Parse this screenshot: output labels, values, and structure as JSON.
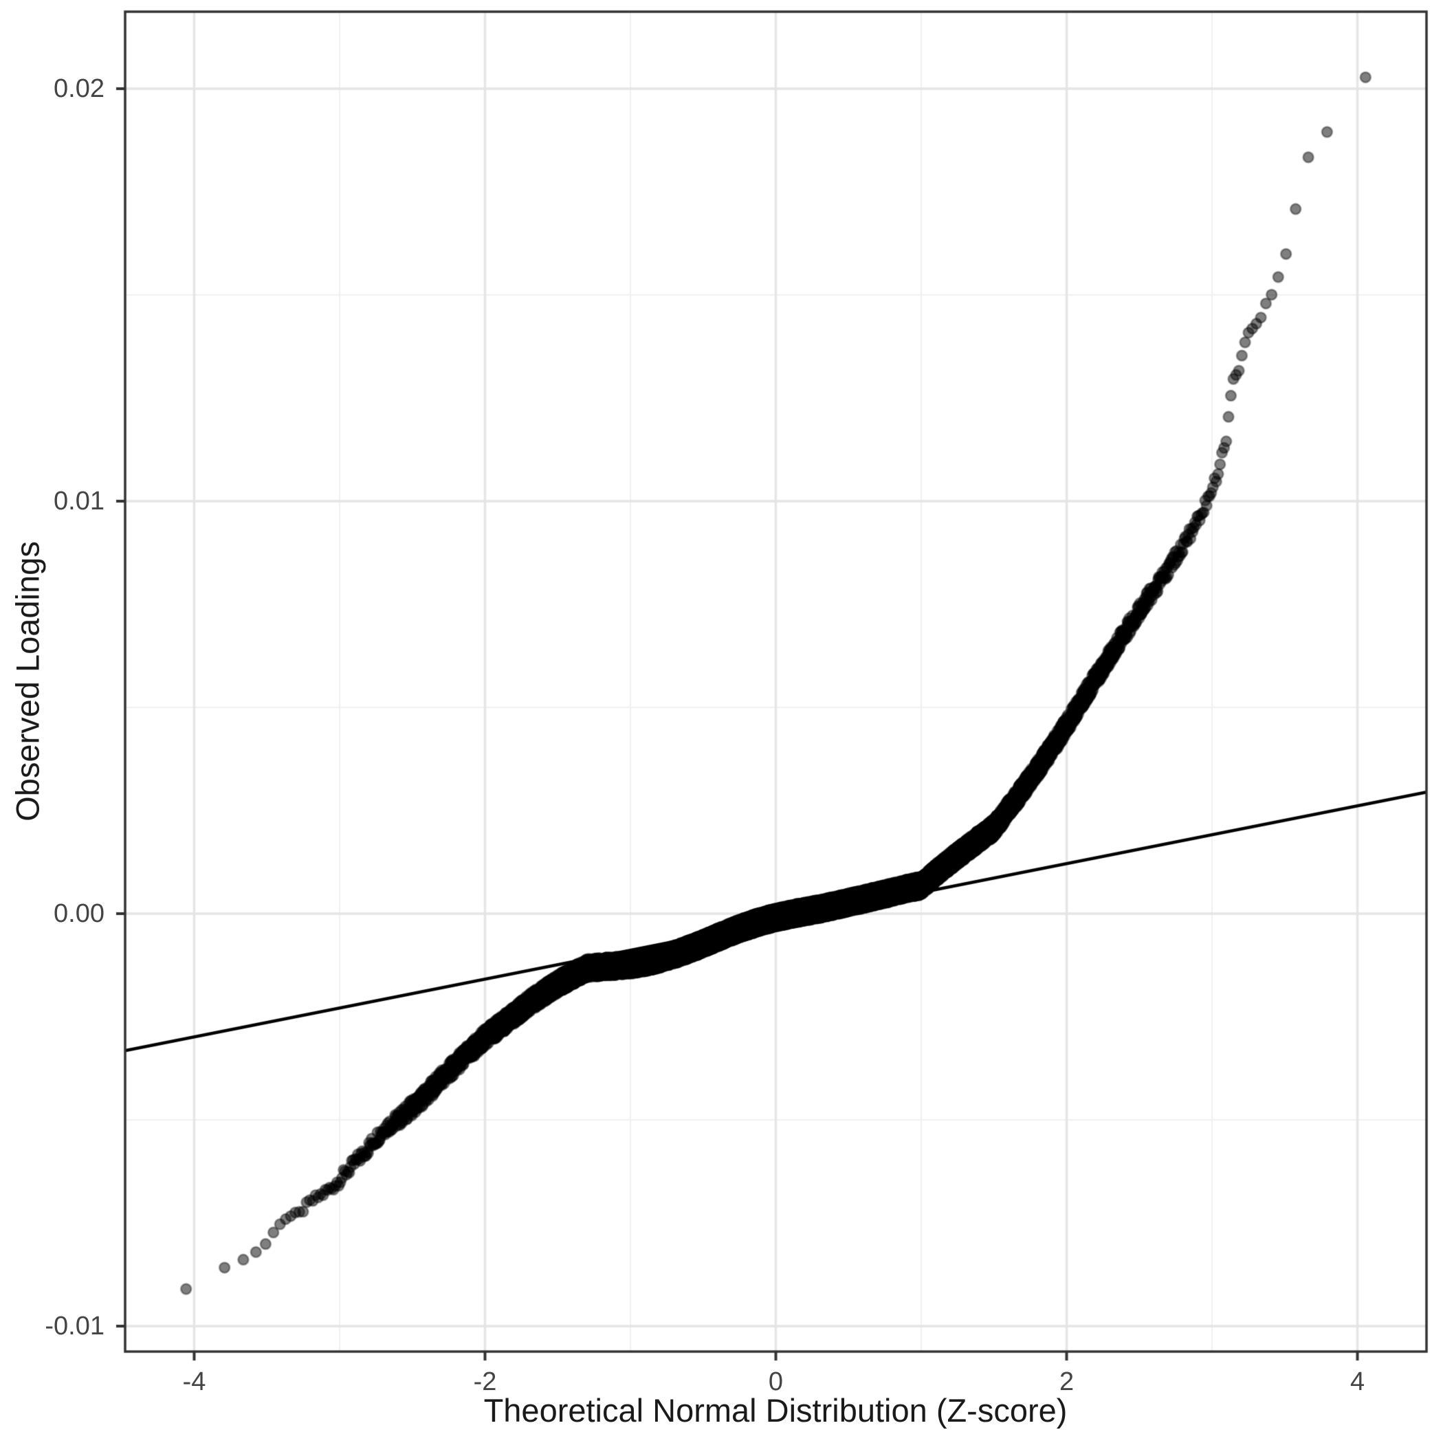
{
  "style": {
    "background": "#ffffff",
    "panel_border": "#333333",
    "grid_major": "#e5e5e5",
    "grid_minor": "#f0f0f0",
    "tick_mark": "#333333",
    "tick_label_color": "#444444",
    "axis_title_color": "#1a1a1a",
    "point_fill": "rgba(0,0,0,0.5)",
    "point_stroke": "rgba(0,0,0,0.35)",
    "reference_line_color": "#000000"
  },
  "chart_data": {
    "type": "scatter",
    "subtype": "normal-qq-plot",
    "title": "",
    "xlabel": "Theoretical Normal Distribution (Z-score)",
    "ylabel": "Observed Loadings",
    "xlim": [
      -4.475,
      4.475
    ],
    "ylim": [
      -0.010617,
      0.021867
    ],
    "grid": "on",
    "legend": "none",
    "x_major_ticks": [
      {
        "value": -4,
        "label": "-4"
      },
      {
        "value": -2,
        "label": "-2"
      },
      {
        "value": 0,
        "label": "0"
      },
      {
        "value": 2,
        "label": "2"
      },
      {
        "value": 4,
        "label": "4"
      }
    ],
    "x_minor_ticks": [
      -3,
      -1,
      1,
      3
    ],
    "y_major_ticks": [
      {
        "value": 0.02,
        "label": "0.02"
      },
      {
        "value": 0.01,
        "label": "0.01"
      },
      {
        "value": 0.0,
        "label": "0.00"
      },
      {
        "value": -0.01,
        "label": "-0.01"
      }
    ],
    "y_minor_ticks": [
      -0.005,
      0.005,
      0.015
    ],
    "n_points": 20000,
    "point_radius_px": 7.5,
    "point_stroke_px": 2.5,
    "reference_line": {
      "intercept": -0.000188,
      "slope": 0.0007
    },
    "qq_curve_anchors": [
      [
        -4.47,
        -0.0098
      ],
      [
        -4.08,
        -0.00915
      ],
      [
        -3.81,
        -0.0086
      ],
      [
        -3.68,
        -0.00843
      ],
      [
        -3.59,
        -0.00823
      ],
      [
        -3.53,
        -0.0081
      ],
      [
        -3.47,
        -0.00783
      ],
      [
        -3.42,
        -0.00752
      ],
      [
        -3.36,
        -0.00735
      ],
      [
        -3.28,
        -0.00728
      ],
      [
        -3.21,
        -0.007
      ],
      [
        -3.05,
        -0.00663
      ],
      [
        -2.83,
        -0.00585
      ],
      [
        -2.69,
        -0.0053
      ],
      [
        -2.59,
        -0.0051
      ],
      [
        -2.44,
        -0.00463
      ],
      [
        -2.2,
        -0.0037
      ],
      [
        -2.0,
        -0.00297
      ],
      [
        -1.7,
        -0.00215
      ],
      [
        -1.5,
        -0.0017
      ],
      [
        -1.3,
        -0.0013
      ],
      [
        -1.0,
        -0.00112
      ],
      [
        -0.5,
        -0.00068
      ],
      [
        0.0,
        -0.00022
      ],
      [
        0.5,
        0.00025
      ],
      [
        1.0,
        0.0006
      ],
      [
        1.5,
        0.0022
      ],
      [
        2.0,
        0.00465
      ],
      [
        2.5,
        0.0073
      ],
      [
        2.8,
        0.0089
      ],
      [
        3.0,
        0.0102
      ],
      [
        3.1,
        0.0115
      ],
      [
        3.14,
        0.01287
      ],
      [
        3.16,
        0.01307
      ],
      [
        3.19,
        0.01327
      ],
      [
        3.22,
        0.01387
      ],
      [
        3.28,
        0.01418
      ],
      [
        3.33,
        0.0144
      ],
      [
        3.38,
        0.01487
      ],
      [
        3.42,
        0.01502
      ],
      [
        3.47,
        0.0156
      ],
      [
        3.52,
        0.0161
      ],
      [
        3.59,
        0.01732
      ],
      [
        3.68,
        0.01857
      ],
      [
        3.8,
        0.01898
      ],
      [
        4.07,
        0.02035
      ],
      [
        4.47,
        0.0205
      ]
    ],
    "band_noise": {
      "halfwidth": 0.00022,
      "falloff_z": 3.25,
      "wiggles": [
        [
          0.0001,
          2.2,
          0.8
        ],
        [
          7e-05,
          5.1,
          2.3
        ]
      ],
      "wiggle_falloff_z": 3.0
    }
  }
}
